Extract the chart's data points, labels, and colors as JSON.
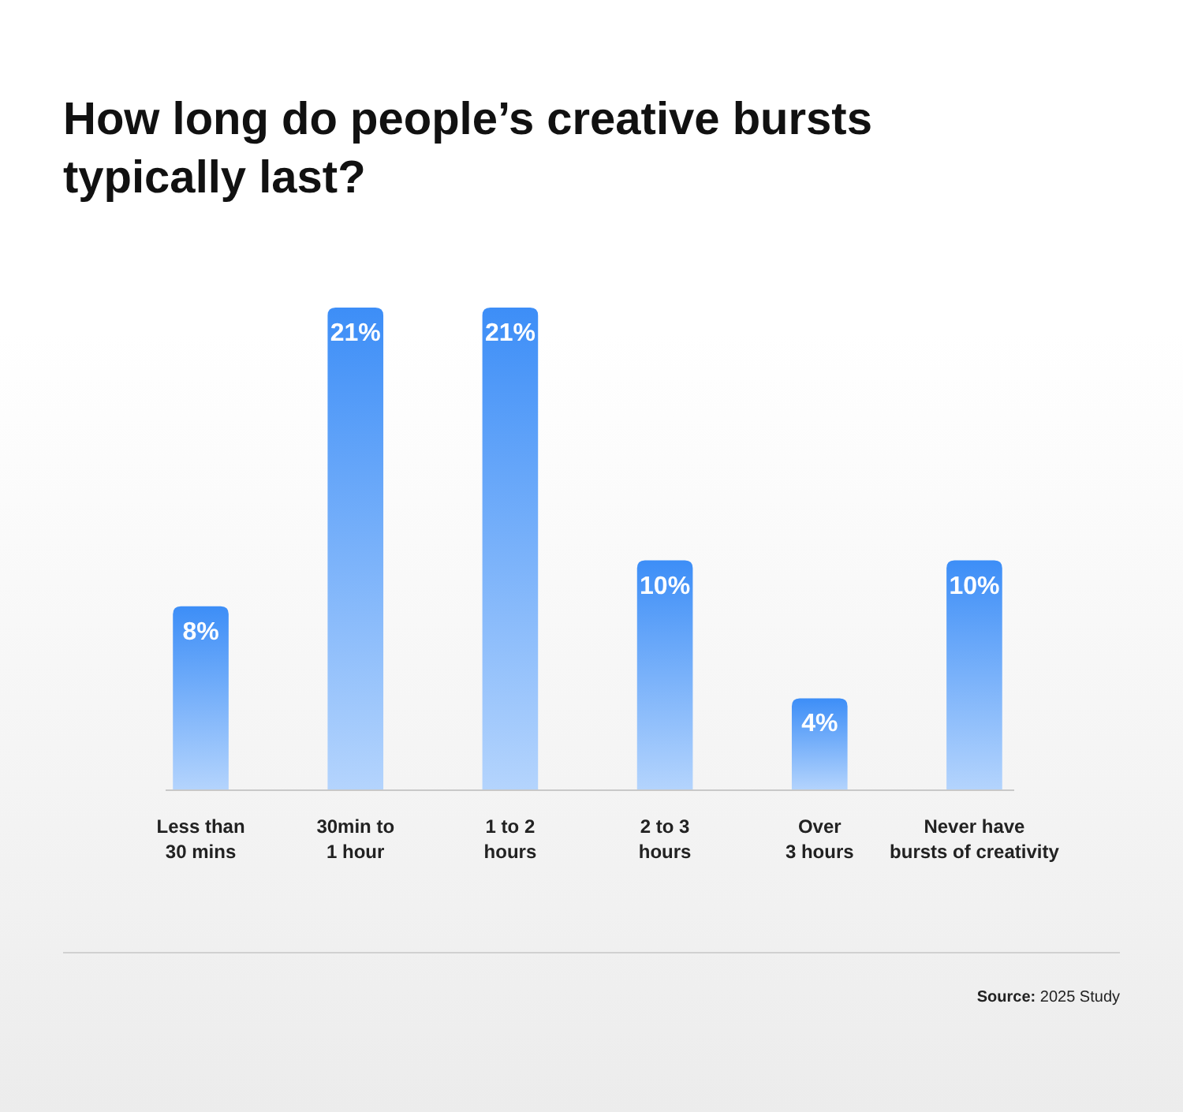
{
  "chart_data": {
    "type": "bar",
    "title": "How long do people’s creative bursts\ntypically last?",
    "categories": [
      "Less than\n30 mins",
      "30min to\n1 hour",
      "1 to 2\nhours",
      "2 to 3\nhours",
      "Over\n3 hours",
      "Never have\nbursts of creativity"
    ],
    "values": [
      8,
      21,
      21,
      10,
      4,
      10
    ],
    "value_labels": [
      "8%",
      "21%",
      "21%",
      "10%",
      "4%",
      "10%"
    ],
    "color": "#3d8ef7",
    "annotations": [
      "Source: 2025 Study"
    ]
  }
}
